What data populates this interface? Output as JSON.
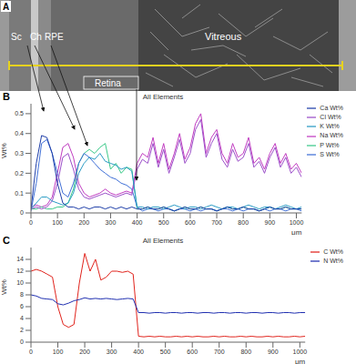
{
  "panel_a": {
    "label": "A",
    "regions": [
      "Sc",
      "Ch",
      "RPE",
      "Retina",
      "Vitreous"
    ]
  },
  "chart_data": [
    {
      "label": "B",
      "type": "line",
      "title": "All Elements",
      "x_label": "μm",
      "y_label": "Wt%",
      "x": [
        0,
        20,
        40,
        60,
        80,
        100,
        120,
        140,
        160,
        180,
        200,
        220,
        240,
        260,
        280,
        300,
        320,
        340,
        360,
        380,
        400,
        420,
        440,
        460,
        480,
        500,
        520,
        540,
        560,
        580,
        600,
        620,
        640,
        660,
        680,
        700,
        720,
        740,
        760,
        780,
        800,
        820,
        840,
        860,
        880,
        900,
        920,
        940,
        960,
        980,
        1000,
        1020
      ],
      "xlim": [
        0,
        1020
      ],
      "xticks": [
        0,
        100,
        200,
        300,
        400,
        500,
        600,
        700,
        800,
        900,
        1000
      ],
      "ylim": [
        0,
        0.55
      ],
      "yticks": [
        0,
        0.1,
        0.2,
        0.3,
        0.4,
        0.5
      ],
      "grid": false,
      "legend": "right",
      "series": [
        {
          "name": "Na Wt%",
          "color": "#c03cc0",
          "values": [
            0.03,
            0.04,
            0.03,
            0.04,
            0.08,
            0.2,
            0.33,
            0.35,
            0.28,
            0.15,
            0.1,
            0.08,
            0.09,
            0.1,
            0.12,
            0.1,
            0.09,
            0.1,
            0.11,
            0.1,
            0.25,
            0.3,
            0.28,
            0.38,
            0.25,
            0.35,
            0.22,
            0.3,
            0.4,
            0.27,
            0.33,
            0.45,
            0.5,
            0.3,
            0.38,
            0.42,
            0.3,
            0.25,
            0.35,
            0.28,
            0.3,
            0.38,
            0.25,
            0.28,
            0.22,
            0.3,
            0.35,
            0.25,
            0.3,
            0.22,
            0.25,
            0.2
          ]
        },
        {
          "name": "P Wt%",
          "color": "#3cc98a",
          "values": [
            0.02,
            0.02,
            0.03,
            0.02,
            0.02,
            0.03,
            0.03,
            0.05,
            0.12,
            0.25,
            0.3,
            0.32,
            0.3,
            0.33,
            0.35,
            0.22,
            0.25,
            0.2,
            0.23,
            0.22,
            0.02,
            0.02,
            0.03,
            0.02,
            0.02,
            0.03,
            0.02,
            0.01,
            0.02,
            0.03,
            0.02,
            0.02,
            0.03,
            0.02,
            0.02,
            0.01,
            0.02,
            0.03,
            0.02,
            0.02,
            0.03,
            0.02,
            0.02,
            0.01,
            0.02,
            0.03,
            0.02,
            0.02,
            0.03,
            0.02,
            0.02,
            0.02
          ]
        },
        {
          "name": "S Wt%",
          "color": "#3f6fd6",
          "values": [
            0.01,
            0.15,
            0.35,
            0.37,
            0.3,
            0.2,
            0.1,
            0.08,
            0.15,
            0.25,
            0.3,
            0.28,
            0.25,
            0.22,
            0.2,
            0.18,
            0.17,
            0.15,
            0.14,
            0.12,
            0.03,
            0.01,
            0.02,
            0.02,
            0.01,
            0.02,
            0.02,
            0.01,
            0.02,
            0.02,
            0.01,
            0.02,
            0.01,
            0.02,
            0.02,
            0.01,
            0.02,
            0.02,
            0.01,
            0.02,
            0.01,
            0.02,
            0.02,
            0.01,
            0.02,
            0.01,
            0.02,
            0.02,
            0.01,
            0.02,
            0.02,
            0.01
          ]
        },
        {
          "name": "Cl Wt%",
          "color": "#9b4fc9",
          "values": [
            0.02,
            0.03,
            0.02,
            0.03,
            0.06,
            0.15,
            0.28,
            0.3,
            0.22,
            0.12,
            0.08,
            0.07,
            0.08,
            0.09,
            0.1,
            0.09,
            0.08,
            0.09,
            0.1,
            0.09,
            0.22,
            0.27,
            0.25,
            0.35,
            0.23,
            0.32,
            0.2,
            0.28,
            0.37,
            0.25,
            0.3,
            0.42,
            0.47,
            0.28,
            0.35,
            0.4,
            0.27,
            0.23,
            0.32,
            0.26,
            0.28,
            0.35,
            0.23,
            0.26,
            0.2,
            0.28,
            0.33,
            0.23,
            0.28,
            0.2,
            0.23,
            0.18
          ]
        },
        {
          "name": "K Wt%",
          "color": "#2a9bc4",
          "values": [
            0.02,
            0.05,
            0.08,
            0.08,
            0.06,
            0.05,
            0.04,
            0.05,
            0.1,
            0.2,
            0.25,
            0.28,
            0.27,
            0.3,
            0.26,
            0.25,
            0.24,
            0.22,
            0.23,
            0.21,
            0.03,
            0.03,
            0.02,
            0.03,
            0.03,
            0.02,
            0.03,
            0.04,
            0.03,
            0.02,
            0.03,
            0.03,
            0.02,
            0.03,
            0.04,
            0.03,
            0.02,
            0.03,
            0.03,
            0.02,
            0.03,
            0.04,
            0.03,
            0.02,
            0.03,
            0.03,
            0.02,
            0.03,
            0.04,
            0.03,
            0.02,
            0.03
          ]
        },
        {
          "name": "Ca Wt%",
          "color": "#1f3fa8",
          "values": [
            0.02,
            0.25,
            0.39,
            0.38,
            0.3,
            0.15,
            0.05,
            0.03,
            0.03,
            0.02,
            0.03,
            0.02,
            0.03,
            0.03,
            0.02,
            0.03,
            0.02,
            0.03,
            0.02,
            0.03,
            0.02,
            0.02,
            0.03,
            0.02,
            0.02,
            0.03,
            0.02,
            0.01,
            0.02,
            0.03,
            0.02,
            0.02,
            0.03,
            0.02,
            0.02,
            0.01,
            0.02,
            0.03,
            0.02,
            0.02,
            0.03,
            0.02,
            0.02,
            0.01,
            0.02,
            0.03,
            0.02,
            0.02,
            0.03,
            0.02,
            0.02,
            0.02
          ]
        }
      ]
    },
    {
      "label": "C",
      "type": "line",
      "title": "All Elements",
      "x_label": "μm",
      "y_label": "Wt%",
      "x": [
        0,
        20,
        40,
        60,
        80,
        100,
        120,
        140,
        160,
        180,
        200,
        220,
        240,
        260,
        280,
        300,
        320,
        340,
        360,
        380,
        400,
        420,
        440,
        460,
        480,
        500,
        520,
        540,
        560,
        580,
        600,
        620,
        640,
        660,
        680,
        700,
        720,
        740,
        760,
        780,
        800,
        820,
        840,
        860,
        880,
        900,
        920,
        940,
        960,
        980,
        1000,
        1020
      ],
      "xlim": [
        0,
        1020
      ],
      "xticks": [
        0,
        100,
        200,
        300,
        400,
        500,
        600,
        700,
        800,
        900,
        1000
      ],
      "ylim": [
        0,
        16
      ],
      "yticks": [
        0,
        2,
        4,
        6,
        8,
        10,
        12,
        14
      ],
      "grid": false,
      "legend": "right",
      "series": [
        {
          "name": "C Wt%",
          "color": "#e0231c",
          "values": [
            12,
            12.3,
            12,
            11.5,
            11,
            6,
            3,
            2.5,
            3,
            10,
            15,
            12,
            14,
            10.5,
            11,
            12,
            12,
            11.8,
            12,
            11.5,
            1,
            0.9,
            1,
            0.9,
            1,
            0.9,
            0.9,
            1,
            0.9,
            1,
            0.9,
            1,
            0.9,
            0.9,
            1,
            0.9,
            1,
            0.9,
            0.9,
            1,
            0.9,
            1,
            0.9,
            0.9,
            1,
            0.9,
            1,
            0.9,
            0.9,
            1,
            0.9,
            1
          ]
        },
        {
          "name": "N Wt%",
          "color": "#1f2fb0",
          "values": [
            8,
            7.8,
            7.4,
            7.3,
            7.2,
            6.5,
            6.3,
            6.6,
            7,
            7.2,
            7.5,
            7.3,
            7.4,
            7.3,
            7.4,
            7.3,
            7.2,
            7.3,
            7.4,
            7.3,
            5,
            5,
            4.9,
            5,
            5,
            4.9,
            5,
            5,
            4.9,
            5,
            5,
            4.9,
            5,
            5,
            4.9,
            5,
            5,
            4.9,
            5,
            5,
            4.9,
            5,
            5,
            4.9,
            5,
            5,
            4.9,
            5,
            5,
            4.9,
            5,
            5
          ]
        }
      ]
    }
  ]
}
